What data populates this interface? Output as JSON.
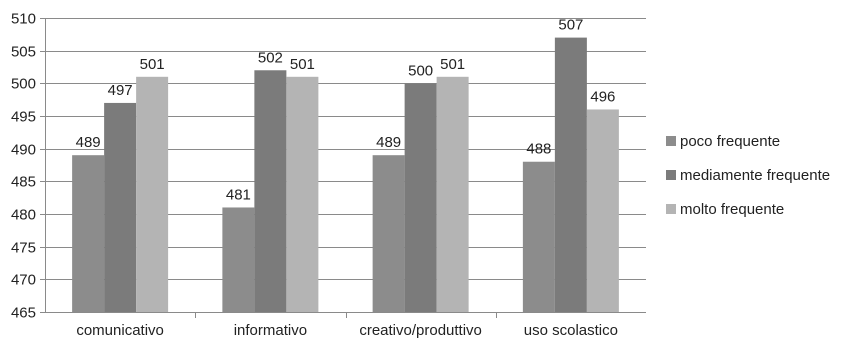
{
  "chart_data": {
    "type": "bar",
    "categories": [
      "comunicativo",
      "informativo",
      "creativo/produttivo",
      "uso scolastico"
    ],
    "series": [
      {
        "name": "poco frequente",
        "color": "#8c8c8c",
        "values": [
          489,
          481,
          489,
          488
        ]
      },
      {
        "name": "mediamente frequente",
        "color": "#7b7b7b",
        "values": [
          497,
          502,
          500,
          507
        ]
      },
      {
        "name": "molto frequente",
        "color": "#b4b4b4",
        "values": [
          501,
          501,
          501,
          496
        ]
      }
    ],
    "ylim": [
      465,
      510
    ],
    "ytick_step": 5,
    "yticks": [
      "465",
      "470",
      "475",
      "480",
      "485",
      "490",
      "495",
      "500",
      "505",
      "510"
    ],
    "data_labels": [
      [
        "489",
        "481",
        "489",
        "488"
      ],
      [
        "497",
        "502",
        "500",
        "507"
      ],
      [
        "501",
        "501",
        "501",
        "496"
      ]
    ],
    "grid": true,
    "legend_position": "right",
    "title": "",
    "xlabel": "",
    "ylabel": ""
  }
}
